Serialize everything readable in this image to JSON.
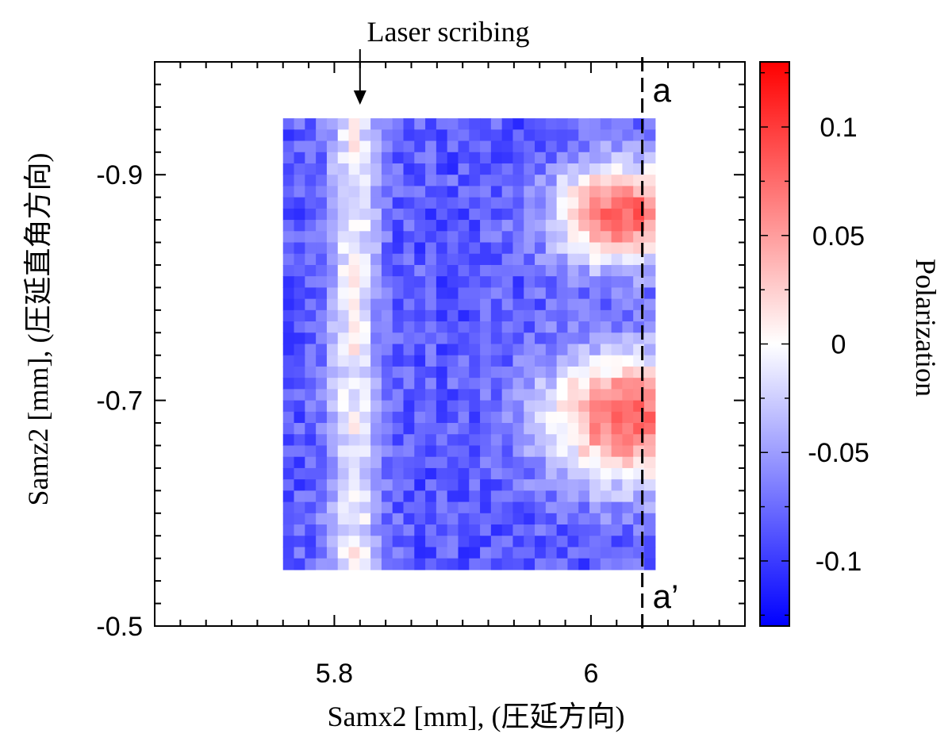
{
  "chart_data": {
    "type": "heatmap",
    "title": "",
    "xlabel": "Samx2 [mm], (圧延方向)",
    "ylabel": "Samz2 [mm], (圧延直角方向)",
    "xlim": [
      5.66,
      6.12
    ],
    "ylim": [
      -0.5,
      -1.0
    ],
    "x_ticks": [
      {
        "value": 5.8,
        "label": "5.8"
      },
      {
        "value": 6.0,
        "label": "6"
      }
    ],
    "y_ticks": [
      {
        "value": -0.9,
        "label": "-0.9"
      },
      {
        "value": -0.7,
        "label": "-0.7"
      },
      {
        "value": -0.5,
        "label": "-0.5"
      }
    ],
    "grid": {
      "x_range": [
        5.76,
        6.05
      ],
      "y_range": [
        -0.95,
        -0.55
      ],
      "cols": 34,
      "rows": 40
    },
    "colorbar": {
      "label": "Polarization",
      "range": [
        -0.13,
        0.13
      ],
      "ticks": [
        {
          "value": 0.1,
          "label": "0.1"
        },
        {
          "value": 0.05,
          "label": "0.05"
        },
        {
          "value": 0,
          "label": "0"
        },
        {
          "value": -0.05,
          "label": "-0.05"
        },
        {
          "value": -0.1,
          "label": "-0.1"
        }
      ],
      "colors": {
        "low": "#0000ff",
        "mid": "#ffffff",
        "high": "#ff0000"
      }
    },
    "annotations": {
      "laser_scribing": {
        "text": "Laser scribing",
        "x": 5.82
      },
      "cut_line": {
        "x": 6.04,
        "top_label": "a",
        "bottom_label": "a’"
      }
    }
  }
}
